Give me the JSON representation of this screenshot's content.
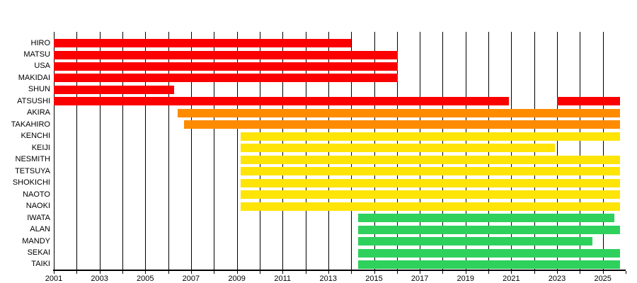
{
  "chart_data": {
    "type": "gantt-timeline",
    "title": "",
    "description": "Member tenure timeline chart, one horizontal colored bar per member, x-axis in years",
    "x_axis": {
      "min": 2001,
      "max": 2026,
      "gridline_years": [
        2001,
        2002,
        2003,
        2004,
        2005,
        2006,
        2007,
        2008,
        2009,
        2010,
        2011,
        2012,
        2013,
        2014,
        2015,
        2016,
        2017,
        2018,
        2019,
        2020,
        2021,
        2022,
        2023,
        2024,
        2025
      ],
      "tick_years": [
        2001,
        2002,
        2003,
        2004,
        2005,
        2006,
        2007,
        2008,
        2009,
        2010,
        2011,
        2012,
        2013,
        2014,
        2015,
        2016,
        2017,
        2018,
        2019,
        2020,
        2021,
        2022,
        2023,
        2024,
        2025,
        2026
      ],
      "label_years": [
        "2001",
        "2003",
        "2005",
        "2007",
        "2009",
        "2011",
        "2013",
        "2015",
        "2017",
        "2019",
        "2021",
        "2023",
        "2025"
      ]
    },
    "palette": {
      "generation1_red": "#FB0000",
      "generation2_orange": "#FF8C00",
      "generation3_yellow": "#FFE408",
      "generation4_green": "#2ED15C"
    },
    "members": [
      {
        "name": "HIRO",
        "color": "generation1_red",
        "segments": [
          [
            2001.0,
            2014.0
          ]
        ]
      },
      {
        "name": "MATSU",
        "color": "generation1_red",
        "segments": [
          [
            2001.0,
            2016.05
          ]
        ]
      },
      {
        "name": "USA",
        "color": "generation1_red",
        "segments": [
          [
            2001.0,
            2016.05
          ]
        ]
      },
      {
        "name": "MAKIDAI",
        "color": "generation1_red",
        "segments": [
          [
            2001.0,
            2016.05
          ]
        ]
      },
      {
        "name": "SHUN",
        "color": "generation1_red",
        "segments": [
          [
            2001.0,
            2006.25
          ]
        ]
      },
      {
        "name": "ATSUSHI",
        "color": "generation1_red",
        "segments": [
          [
            2001.0,
            2020.9
          ],
          [
            2023.0,
            2025.76
          ]
        ]
      },
      {
        "name": "AKIRA",
        "color": "generation2_orange",
        "segments": [
          [
            2006.4,
            2025.76
          ]
        ]
      },
      {
        "name": "TAKAHIRO",
        "color": "generation2_orange",
        "segments": [
          [
            2006.7,
            2025.76
          ]
        ]
      },
      {
        "name": "KENCHI",
        "color": "generation3_yellow",
        "segments": [
          [
            2009.17,
            2025.76
          ]
        ]
      },
      {
        "name": "KEIJI",
        "color": "generation3_yellow",
        "segments": [
          [
            2009.17,
            2022.92
          ]
        ]
      },
      {
        "name": "NESMITH",
        "color": "generation3_yellow",
        "segments": [
          [
            2009.17,
            2025.76
          ]
        ]
      },
      {
        "name": "TETSUYA",
        "color": "generation3_yellow",
        "segments": [
          [
            2009.17,
            2025.76
          ]
        ]
      },
      {
        "name": "SHOKICHI",
        "color": "generation3_yellow",
        "segments": [
          [
            2009.17,
            2025.76
          ]
        ]
      },
      {
        "name": "NAOTO",
        "color": "generation3_yellow",
        "segments": [
          [
            2009.17,
            2025.76
          ]
        ]
      },
      {
        "name": "NAOKI",
        "color": "generation3_yellow",
        "segments": [
          [
            2009.17,
            2025.76
          ]
        ]
      },
      {
        "name": "IWATA",
        "color": "generation4_green",
        "segments": [
          [
            2014.3,
            2025.5
          ]
        ]
      },
      {
        "name": "ALAN",
        "color": "generation4_green",
        "segments": [
          [
            2014.3,
            2025.76
          ]
        ]
      },
      {
        "name": "MANDY",
        "color": "generation4_green",
        "segments": [
          [
            2014.3,
            2024.56
          ]
        ]
      },
      {
        "name": "SEKAI",
        "color": "generation4_green",
        "segments": [
          [
            2014.3,
            2025.76
          ]
        ]
      },
      {
        "name": "TAIKI",
        "color": "generation4_green",
        "segments": [
          [
            2014.3,
            2025.76
          ]
        ]
      }
    ],
    "layout": {
      "grid": "vertical yearly lines",
      "legend": "none",
      "background": "#ffffff"
    }
  }
}
